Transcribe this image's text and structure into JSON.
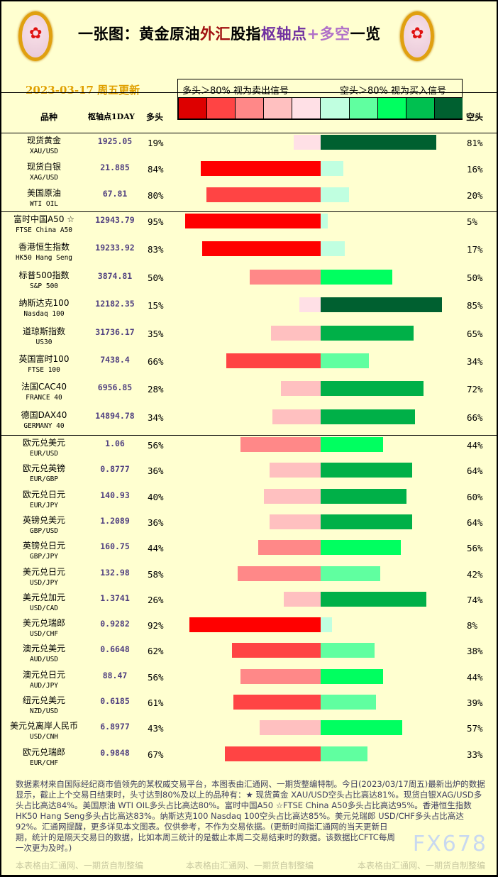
{
  "title": {
    "p1": "一张图：黄金原油",
    "p2": "外汇",
    "p3": "股指",
    "p4": "枢轴点",
    "p5": "+多空",
    "p6": "一览"
  },
  "date": "2023-03-17 周五更新",
  "legend": {
    "left": "多头＞80% 视为卖出信号",
    "right": "空头＞80% 视为买入信号"
  },
  "scale_colors": [
    "#dd0000",
    "#ff4444",
    "#ff8888",
    "#ffc0c0",
    "#ffe0e6",
    "#c0ffe0",
    "#60ffa0",
    "#00ff60",
    "#00c050",
    "#006030"
  ],
  "headers": {
    "name": "品种",
    "pivot": "枢轴点1DAY",
    "long": "多头",
    "short": "空头"
  },
  "rows": [
    {
      "cn": "现货黄金",
      "en": "XAU/USD",
      "pivot": "1925.05",
      "long": "19%",
      "short": "81%",
      "l": 19,
      "s": 81
    },
    {
      "cn": "现货白银",
      "en": "XAG/USD",
      "pivot": "21.885",
      "long": "84%",
      "short": "16%",
      "l": 84,
      "s": 16
    },
    {
      "cn": "美国原油",
      "en": "WTI OIL",
      "pivot": "67.81",
      "long": "80%",
      "short": "20%",
      "l": 80,
      "s": 20
    },
    {
      "cn": "富时中国A50 ☆",
      "en": "FTSE China A50",
      "pivot": "12943.79",
      "long": "95%",
      "short": "5%",
      "l": 95,
      "s": 5
    },
    {
      "cn": "香港恒生指数",
      "en": "HK50 Hang Seng",
      "pivot": "19233.92",
      "long": "83%",
      "short": "17%",
      "l": 83,
      "s": 17
    },
    {
      "cn": "标普500指数",
      "en": "S&P 500",
      "pivot": "3874.81",
      "long": "50%",
      "short": "50%",
      "l": 50,
      "s": 50
    },
    {
      "cn": "纳斯达克100",
      "en": "Nasdaq 100",
      "pivot": "12182.35",
      "long": "15%",
      "short": "85%",
      "l": 15,
      "s": 85
    },
    {
      "cn": "道琼斯指数",
      "en": "US30",
      "pivot": "31736.17",
      "long": "35%",
      "short": "65%",
      "l": 35,
      "s": 65
    },
    {
      "cn": "英国富时100",
      "en": "FTSE 100",
      "pivot": "7438.4",
      "long": "66%",
      "short": "34%",
      "l": 66,
      "s": 34
    },
    {
      "cn": "法国CAC40",
      "en": "FRANCE 40",
      "pivot": "6956.85",
      "long": "28%",
      "short": "72%",
      "l": 28,
      "s": 72
    },
    {
      "cn": "德国DAX40",
      "en": "GERMANY 40",
      "pivot": "14894.78",
      "long": "34%",
      "short": "66%",
      "l": 34,
      "s": 66
    },
    {
      "cn": "欧元兑美元",
      "en": "EUR/USD",
      "pivot": "1.06",
      "long": "56%",
      "short": "44%",
      "l": 56,
      "s": 44
    },
    {
      "cn": "欧元兑英镑",
      "en": "EUR/GBP",
      "pivot": "0.8777",
      "long": "36%",
      "short": "64%",
      "l": 36,
      "s": 64
    },
    {
      "cn": "欧元兑日元",
      "en": "EUR/JPY",
      "pivot": "140.93",
      "long": "40%",
      "short": "60%",
      "l": 40,
      "s": 60
    },
    {
      "cn": "英镑兑美元",
      "en": "GBP/USD",
      "pivot": "1.2089",
      "long": "36%",
      "short": "64%",
      "l": 36,
      "s": 64
    },
    {
      "cn": "英镑兑日元",
      "en": "GBP/JPY",
      "pivot": "160.75",
      "long": "44%",
      "short": "56%",
      "l": 44,
      "s": 56
    },
    {
      "cn": "美元兑日元",
      "en": "USD/JPY",
      "pivot": "132.98",
      "long": "58%",
      "short": "42%",
      "l": 58,
      "s": 42
    },
    {
      "cn": "美元兑加元",
      "en": "USD/CAD",
      "pivot": "1.3741",
      "long": "26%",
      "short": "74%",
      "l": 26,
      "s": 74
    },
    {
      "cn": "美元兑瑞郎",
      "en": "USD/CHF",
      "pivot": "0.9282",
      "long": "92%",
      "short": "8%",
      "l": 92,
      "s": 8
    },
    {
      "cn": "澳元兑美元",
      "en": "AUD/USD",
      "pivot": "0.6648",
      "long": "62%",
      "short": "38%",
      "l": 62,
      "s": 38
    },
    {
      "cn": "澳元兑日元",
      "en": "AUD/JPY",
      "pivot": "88.47",
      "long": "56%",
      "short": "44%",
      "l": 56,
      "s": 44
    },
    {
      "cn": "纽元兑美元",
      "en": "NZD/USD",
      "pivot": "0.6185",
      "long": "61%",
      "short": "39%",
      "l": 61,
      "s": 39
    },
    {
      "cn": "美元兑离岸人民币",
      "en": "USD/CNH",
      "pivot": "6.8977",
      "long": "43%",
      "short": "57%",
      "l": 43,
      "s": 57
    },
    {
      "cn": "欧元兑瑞郎",
      "en": "EUR/CHF",
      "pivot": "0.9848",
      "long": "67%",
      "short": "33%",
      "l": 67,
      "s": 33
    }
  ],
  "footer": "数据素材来自国际经纪商市值领先的某权威交易平台，本图表由汇通网、一期货整编特制。今日(2023/03/17周五)最新出炉的数据显示，截止上个交易日结束时，头寸达到80%及以上的品种有：★ 现货黄金 XAU/USD空头占比高达81%。现货白银XAG/USD多头占比高达84%。美国原油 WTI OIL多头占比高达80%。富时中国A50 ☆FTSE China A50多头占比高达95%。香港恒生指数 HK50 Hang Seng多头占比高达83%。纳斯达克100 Nasdaq 100空头占比高达85%。美元兑瑞郎 USD/CHF多头占比高达92%。汇通网提醒，更多详见本文图表。仅供参考，不作为交易依据。(更新时间指汇通网的当天更新日期，统计的是隔天交易日的数据，比如本周三统计的是截止本周二交易结束时的数据。该数据比CFTC每周一次更为及时。)",
  "watermark": "本表格由汇通网、一期货自制整编",
  "fx_mark": "FX678"
}
